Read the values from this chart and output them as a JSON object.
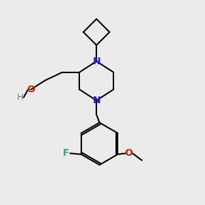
{
  "background_color": "#EBEBEB",
  "bond_color": "#000000",
  "bond_width": 1.5,
  "N_color": "#1A1ACC",
  "O_color": "#CC2200",
  "F_color": "#33AA77",
  "figsize": [
    3.0,
    3.0
  ],
  "dpi": 100,
  "xlim": [
    0,
    10
  ],
  "ylim": [
    0,
    10
  ]
}
